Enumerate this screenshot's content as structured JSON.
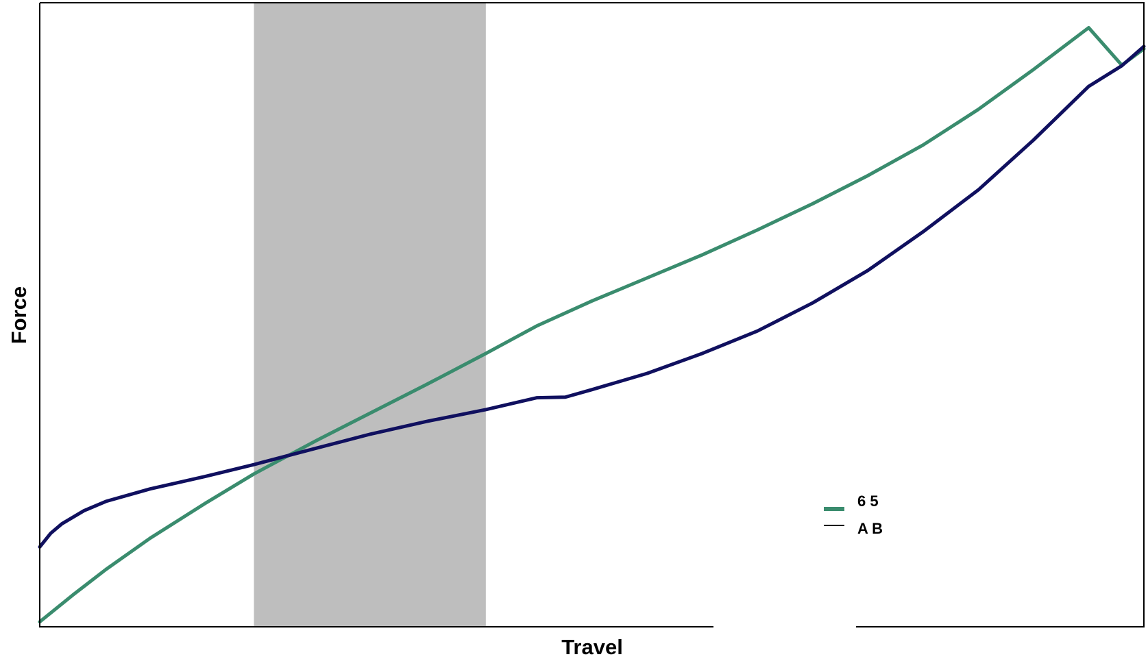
{
  "chart_data": {
    "type": "line",
    "title": "",
    "xlabel": "Travel",
    "ylabel": "Force",
    "xlim": [
      0,
      100
    ],
    "ylim": [
      0,
      100
    ],
    "grid": false,
    "legend_position": "bottom-right",
    "shaded_region": {
      "x_start": 19.4,
      "x_end": 40.4,
      "color": "#bebebe"
    },
    "series": [
      {
        "name": "",
        "legend_glyphs": "6 5",
        "color": "#3a8c6e",
        "x": [
          0,
          3,
          6,
          10,
          15,
          19.4,
          25,
          30,
          35,
          40.4,
          45,
          50,
          55,
          60,
          65,
          70,
          75,
          80,
          85,
          90,
          95,
          98,
          100
        ],
        "y": [
          0.8,
          5.1,
          9.2,
          14.2,
          19.8,
          24.5,
          29.8,
          34.3,
          38.8,
          43.8,
          48.2,
          52.2,
          55.9,
          59.6,
          63.6,
          67.8,
          72.3,
          77.2,
          82.9,
          89.3,
          96.0,
          90.0,
          92.6
        ]
      },
      {
        "name": "",
        "legend_glyphs": "A B",
        "color": "#10105f",
        "x": [
          0,
          1,
          2,
          4,
          6,
          10,
          15,
          19.4,
          25,
          30,
          35,
          40.4,
          45,
          47.6,
          50,
          55,
          60,
          65,
          70,
          75,
          80,
          85,
          90,
          95,
          98,
          100
        ],
        "y": [
          12.8,
          15.0,
          16.5,
          18.6,
          20.1,
          22.1,
          24.1,
          26.0,
          28.6,
          30.9,
          32.9,
          34.8,
          36.7,
          36.8,
          38.0,
          40.6,
          43.8,
          47.4,
          51.9,
          57.1,
          63.3,
          70.0,
          78.0,
          86.6,
          89.9,
          93.0
        ]
      }
    ]
  }
}
